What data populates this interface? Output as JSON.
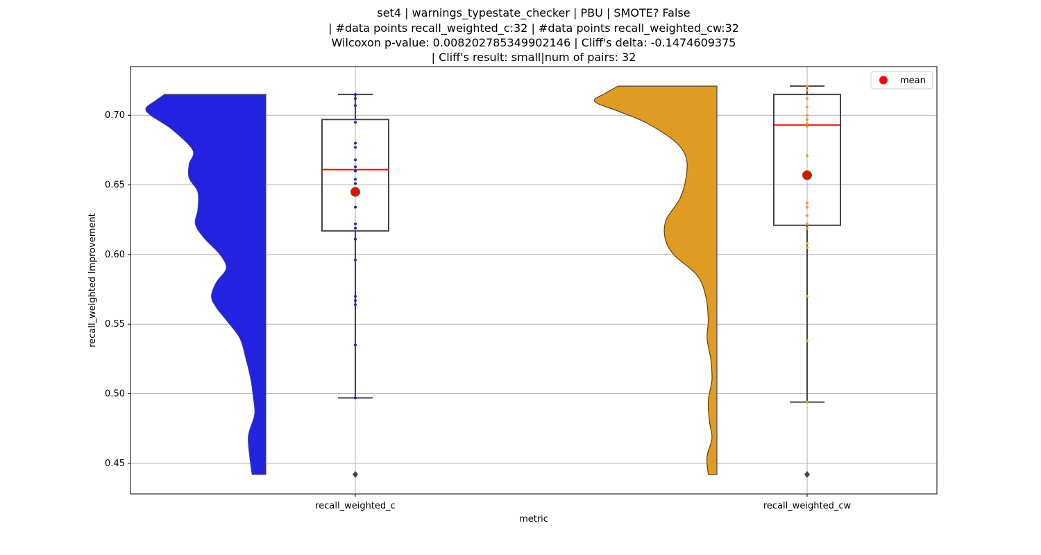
{
  "chart_data": {
    "type": "violin+box+strip",
    "title_lines": [
      "set4 | warnings_typestate_checker | PBU | SMOTE? False",
      "| #data points recall_weighted_c:32 | #data points recall_weighted_cw:32",
      "Wilcoxon p-value: 0.008202785349902146 | Cliff's delta: -0.1474609375",
      "| Cliff's result: small|num of pairs: 32"
    ],
    "xlabel": "metric",
    "ylabel": "recall_weighted Improvement",
    "categories": [
      "recall_weighted_c",
      "recall_weighted_cw"
    ],
    "ylim": [
      0.428,
      0.735
    ],
    "yticks": [
      0.45,
      0.5,
      0.55,
      0.6,
      0.65,
      0.7
    ],
    "ytick_labels": [
      "0.45",
      "0.50",
      "0.55",
      "0.60",
      "0.65",
      "0.70"
    ],
    "grid": true,
    "legend": {
      "placement": "top-right",
      "entries": [
        {
          "label": "mean",
          "color": "#ff0000"
        }
      ]
    },
    "series": [
      {
        "category": "recall_weighted_c",
        "violin_color": "#2222e0",
        "point_color": "#1f1fd6",
        "box": {
          "whisker_low": 0.497,
          "q1": 0.617,
          "median": 0.661,
          "q3": 0.697,
          "whisker_high": 0.715
        },
        "mean": 0.645,
        "outliers": [
          0.442
        ],
        "points": [
          0.715,
          0.712,
          0.707,
          0.695,
          0.68,
          0.677,
          0.668,
          0.663,
          0.66,
          0.654,
          0.651,
          0.634,
          0.622,
          0.619,
          0.611,
          0.596,
          0.57,
          0.567,
          0.564,
          0.535,
          0.497
        ],
        "density": [
          [
            0.442,
            0.11
          ],
          [
            0.455,
            0.13
          ],
          [
            0.47,
            0.14
          ],
          [
            0.485,
            0.09
          ],
          [
            0.497,
            0.1
          ],
          [
            0.51,
            0.12
          ],
          [
            0.525,
            0.16
          ],
          [
            0.54,
            0.21
          ],
          [
            0.553,
            0.32
          ],
          [
            0.562,
            0.4
          ],
          [
            0.57,
            0.44
          ],
          [
            0.58,
            0.4
          ],
          [
            0.59,
            0.32
          ],
          [
            0.6,
            0.37
          ],
          [
            0.612,
            0.5
          ],
          [
            0.622,
            0.57
          ],
          [
            0.632,
            0.55
          ],
          [
            0.645,
            0.55
          ],
          [
            0.655,
            0.62
          ],
          [
            0.665,
            0.62
          ],
          [
            0.675,
            0.59
          ],
          [
            0.69,
            0.76
          ],
          [
            0.7,
            0.93
          ],
          [
            0.705,
            0.97
          ],
          [
            0.71,
            0.9
          ],
          [
            0.715,
            0.82
          ]
        ]
      },
      {
        "category": "recall_weighted_cw",
        "violin_color": "#e09c22",
        "point_color": "#e0a030",
        "box": {
          "whisker_low": 0.494,
          "q1": 0.621,
          "median": 0.693,
          "q3": 0.715,
          "whisker_high": 0.721
        },
        "mean": 0.657,
        "outliers": [
          0.442
        ],
        "points": [
          0.721,
          0.718,
          0.712,
          0.706,
          0.7,
          0.697,
          0.694,
          0.692,
          0.671,
          0.637,
          0.634,
          0.628,
          0.622,
          0.619,
          0.608,
          0.605,
          0.57,
          0.538,
          0.494
        ],
        "density": [
          [
            0.442,
            0.07
          ],
          [
            0.455,
            0.08
          ],
          [
            0.468,
            0.04
          ],
          [
            0.48,
            0.06
          ],
          [
            0.495,
            0.07
          ],
          [
            0.51,
            0.04
          ],
          [
            0.525,
            0.05
          ],
          [
            0.54,
            0.08
          ],
          [
            0.553,
            0.07
          ],
          [
            0.57,
            0.09
          ],
          [
            0.585,
            0.16
          ],
          [
            0.6,
            0.35
          ],
          [
            0.612,
            0.42
          ],
          [
            0.625,
            0.41
          ],
          [
            0.64,
            0.3
          ],
          [
            0.655,
            0.25
          ],
          [
            0.67,
            0.25
          ],
          [
            0.682,
            0.35
          ],
          [
            0.695,
            0.58
          ],
          [
            0.703,
            0.8
          ],
          [
            0.71,
            0.99
          ],
          [
            0.716,
            0.9
          ],
          [
            0.721,
            0.8
          ]
        ]
      }
    ]
  }
}
